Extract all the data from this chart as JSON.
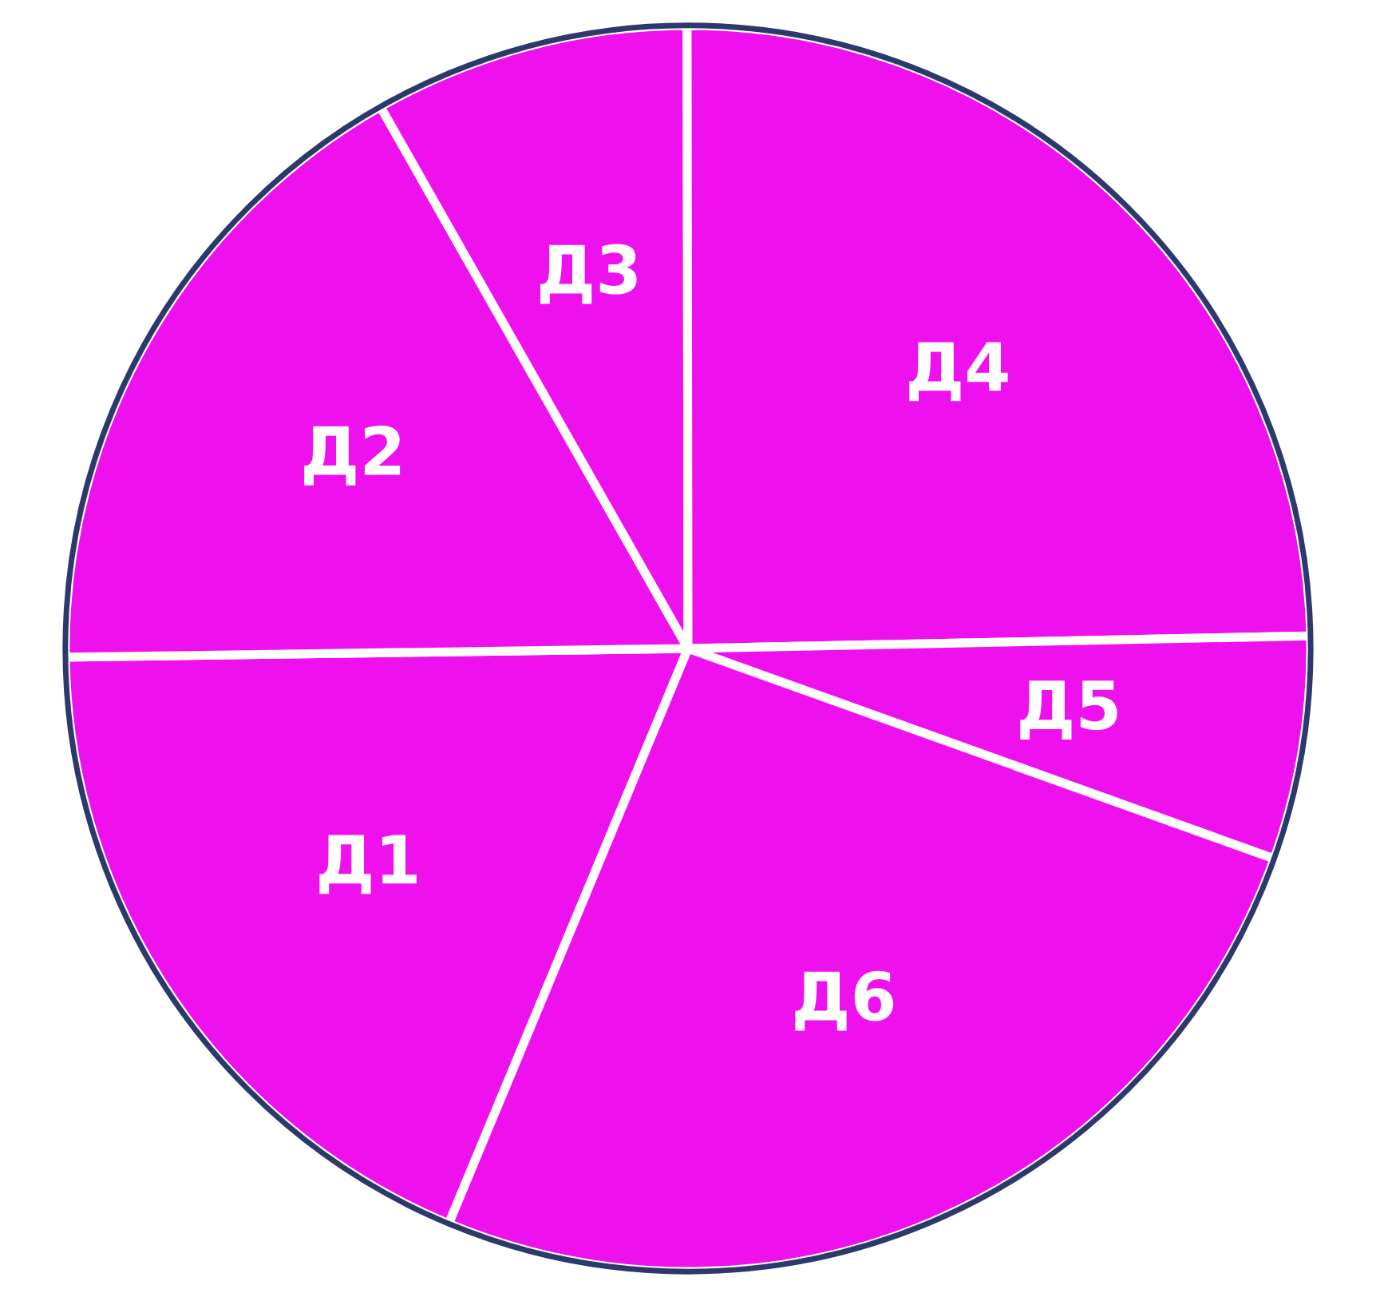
{
  "chart_data": {
    "type": "pie",
    "categories": [
      "Д1",
      "Д2",
      "Д3",
      "Д4",
      "Д5",
      "Д6"
    ],
    "values": [
      18.5,
      17.0,
      8.2,
      24.7,
      5.8,
      25.8
    ],
    "colors": [
      "#ee11ee",
      "#ee11ee",
      "#ee11ee",
      "#ee11ee",
      "#ee11ee",
      "#ee11ee"
    ]
  }
}
